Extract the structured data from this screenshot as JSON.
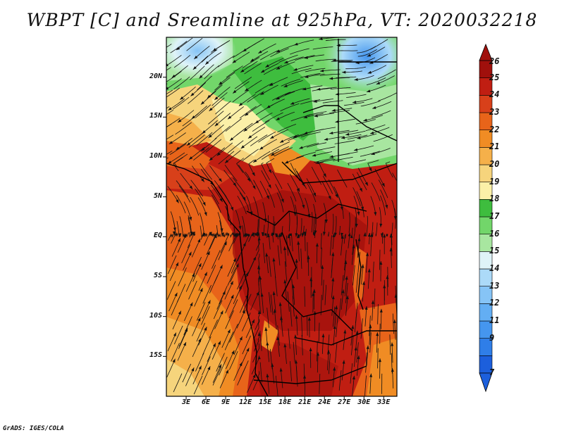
{
  "title": "WBPT [C] and Sreamline at 925hPa, VT: 2020032218",
  "credit": "GrADS: IGES/COLA",
  "map": {
    "lat_labels": [
      "20N",
      "15N",
      "10N",
      "5N",
      "EQ",
      "5S",
      "10S",
      "15S"
    ],
    "lat_values": [
      20,
      15,
      10,
      5,
      0,
      -5,
      -10,
      -15
    ],
    "lon_labels": [
      "3E",
      "6E",
      "9E",
      "12E",
      "15E",
      "18E",
      "21E",
      "24E",
      "27E",
      "30E",
      "33E"
    ],
    "lon_values": [
      3,
      6,
      9,
      12,
      15,
      18,
      21,
      24,
      27,
      30,
      33
    ],
    "lat_range": [
      -20,
      25
    ],
    "lon_range": [
      0,
      35
    ]
  },
  "colorbar": {
    "labels": [
      "7",
      "9",
      "11",
      "12",
      "13",
      "14",
      "15",
      "16",
      "17",
      "18",
      "19",
      "20",
      "21",
      "22",
      "23",
      "24",
      "25",
      "26"
    ],
    "colors": [
      "#1c5fdc",
      "#2f7ee8",
      "#4596ef",
      "#63aef3",
      "#86c4f6",
      "#acdaf8",
      "#dff3f8",
      "#a8e6a0",
      "#72d66a",
      "#3ebd3e",
      "#fbf0a8",
      "#f6d47c",
      "#f5b04a",
      "#f08c24",
      "#e8641a",
      "#d8401a",
      "#c01e12",
      "#a0100c"
    ],
    "arrow_min_color": "#1c5fdc",
    "arrow_max_color": "#a0100c"
  }
}
